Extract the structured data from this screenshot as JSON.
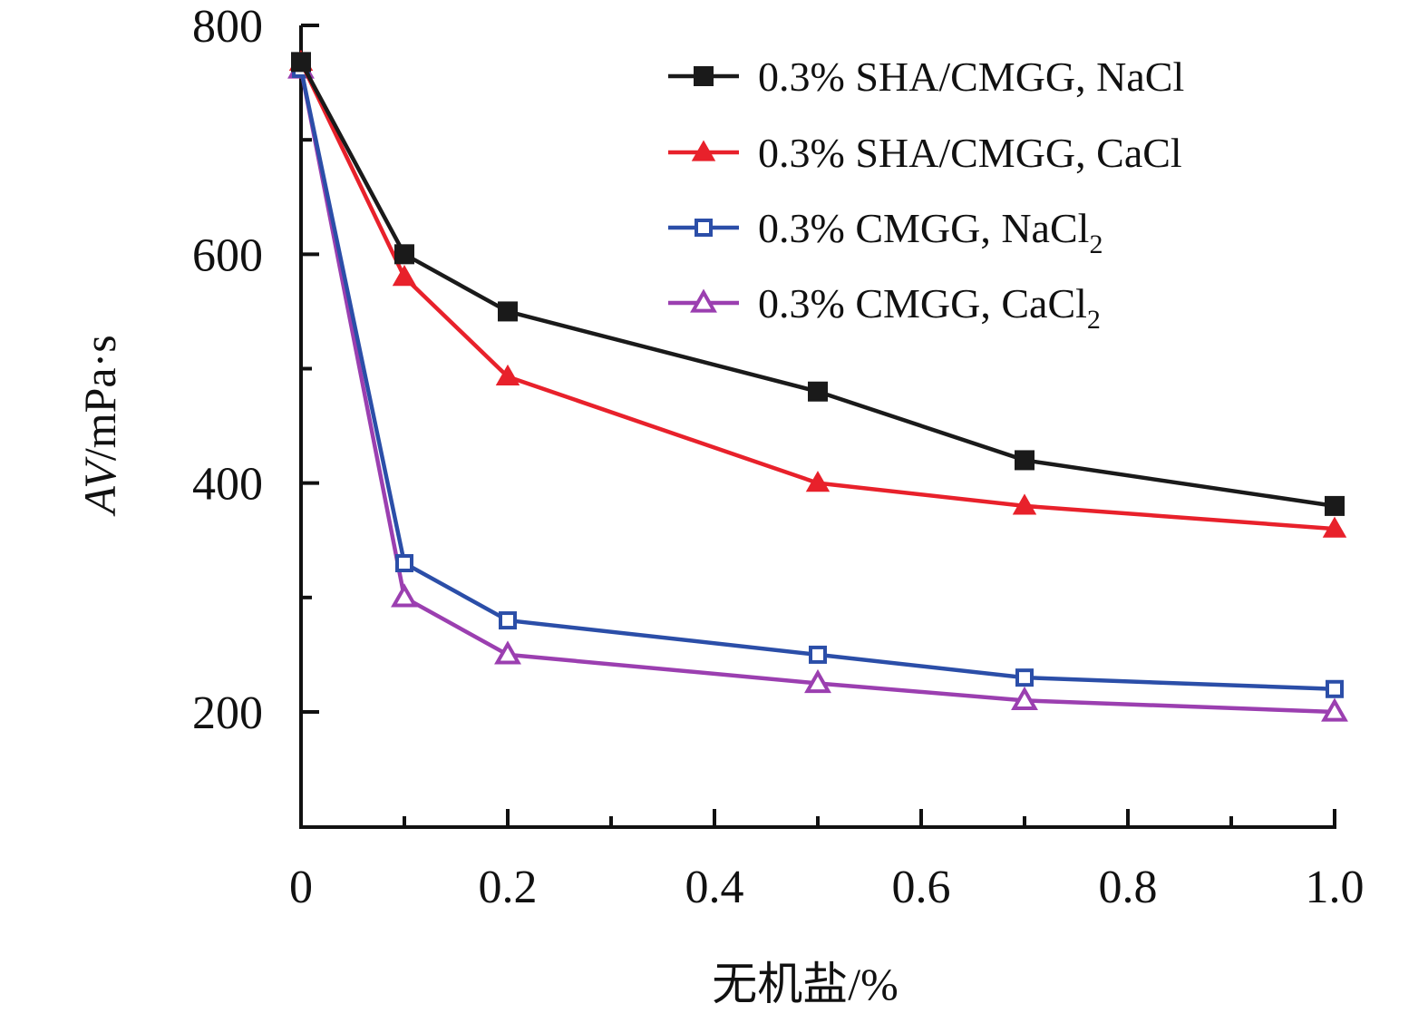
{
  "chart_data": {
    "type": "line",
    "xlabel": "无机盐/%",
    "ylabel": {
      "italic": "AV",
      "rest": "/mPa·s"
    },
    "xlim": [
      0,
      1.0
    ],
    "ylim": [
      100,
      800
    ],
    "xticks": [
      0,
      0.2,
      0.4,
      0.6,
      0.8,
      1.0
    ],
    "xtick_labels": [
      "0",
      "0.2",
      "0.4",
      "0.6",
      "0.8",
      "1.0"
    ],
    "yticks": [
      200,
      400,
      600,
      800
    ],
    "ytick_labels": [
      "200",
      "400",
      "600",
      "800"
    ],
    "grid": false,
    "legend_position": "top-right",
    "series": [
      {
        "name": "0.3% SHA/CMGG, NaCl",
        "name_main": "0.3% SHA/CMGG, NaCl",
        "name_sub": "",
        "color": "#1a1a1a",
        "marker": "square-filled",
        "x": [
          0,
          0.1,
          0.2,
          0.5,
          0.7,
          1.0
        ],
        "y": [
          768,
          600,
          550,
          480,
          420,
          380
        ]
      },
      {
        "name": "0.3% SHA/CMGG, CaCl",
        "name_main": "0.3% SHA/CMGG, CaCl",
        "name_sub": "",
        "color": "#e8212b",
        "marker": "triangle-filled",
        "x": [
          0,
          0.1,
          0.2,
          0.5,
          0.7,
          1.0
        ],
        "y": [
          768,
          580,
          493,
          400,
          380,
          360
        ]
      },
      {
        "name": "0.3% CMGG, NaCl2",
        "name_main": "0.3% CMGG, NaCl",
        "name_sub": "2",
        "color": "#2b4ea8",
        "marker": "square-open",
        "x": [
          0,
          0.1,
          0.2,
          0.5,
          0.7,
          1.0
        ],
        "y": [
          762,
          330,
          280,
          250,
          230,
          220
        ]
      },
      {
        "name": "0.3% CMGG, CaCl2",
        "name_main": "0.3% CMGG, CaCl",
        "name_sub": "2",
        "color": "#9b3fb0",
        "marker": "triangle-open",
        "x": [
          0,
          0.1,
          0.2,
          0.5,
          0.7,
          1.0
        ],
        "y": [
          762,
          300,
          250,
          225,
          210,
          200
        ]
      }
    ]
  }
}
